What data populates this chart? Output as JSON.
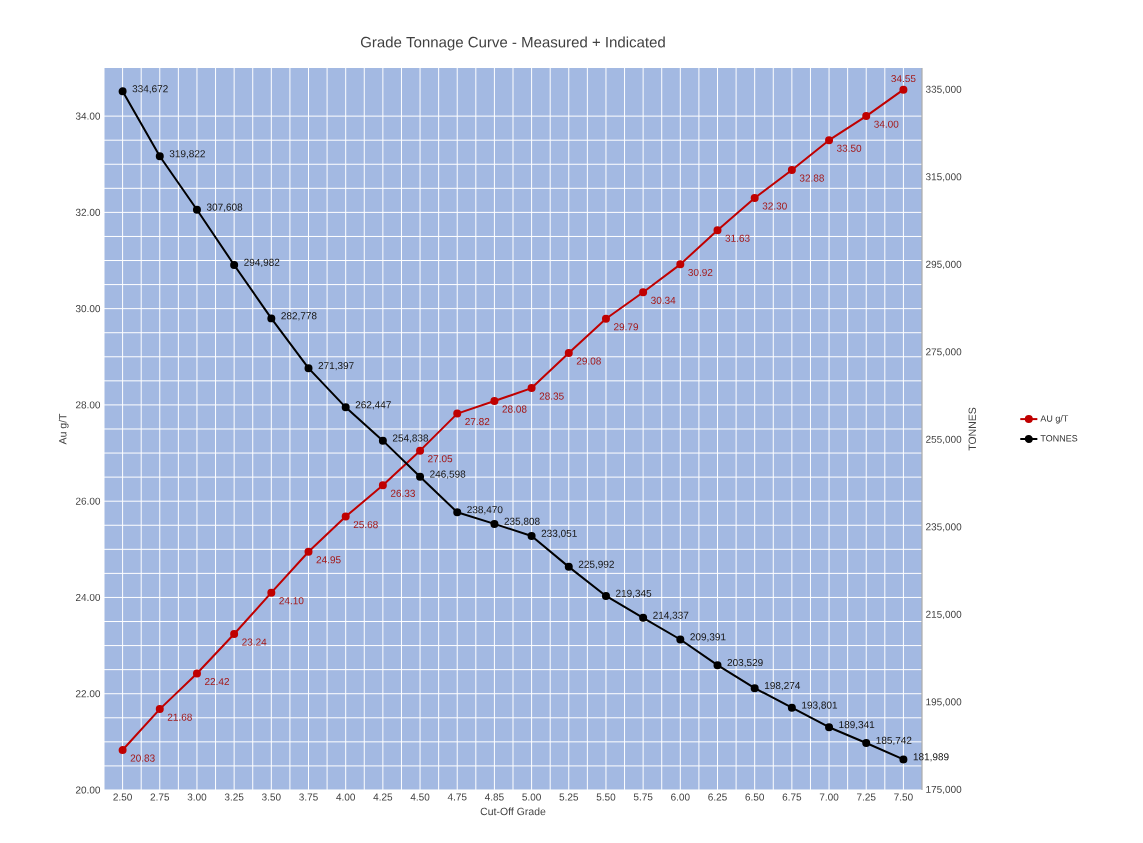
{
  "chart_data": {
    "type": "line",
    "title": "Grade Tonnage Curve - Measured + Indicated",
    "xlabel": "Cut-Off Grade",
    "ylabel": "Au g/T",
    "y2label": "TONNES",
    "categories": [
      "2.50",
      "2.75",
      "3.00",
      "3.25",
      "3.50",
      "3.75",
      "4.00",
      "4.25",
      "4.50",
      "4.75",
      "4.85",
      "5.00",
      "5.25",
      "5.50",
      "5.75",
      "6.00",
      "6.25",
      "6.50",
      "6.75",
      "7.00",
      "7.25",
      "7.50"
    ],
    "series": [
      {
        "name": "AU g/T",
        "color": "#c00000",
        "values": [
          20.83,
          21.68,
          22.42,
          23.24,
          24.1,
          24.95,
          25.68,
          26.33,
          27.05,
          27.82,
          28.08,
          28.35,
          29.08,
          29.79,
          30.34,
          30.92,
          31.63,
          32.3,
          32.88,
          33.5,
          34.0,
          34.55
        ],
        "value_labels": [
          "20.83",
          "21.68",
          "22.42",
          "23.24",
          "24.10",
          "24.95",
          "25.68",
          "26.33",
          "27.05",
          "27.82",
          "28.08",
          "28.35",
          "29.08",
          "29.79",
          "30.34",
          "30.92",
          "31.63",
          "32.30",
          "32.88",
          "33.50",
          "34.00",
          "34.55"
        ]
      },
      {
        "name": "TONNES",
        "color": "#000000",
        "axis": "y2",
        "values": [
          334672,
          319822,
          307608,
          294982,
          282778,
          271397,
          262447,
          254838,
          246598,
          238470,
          235808,
          233051,
          225992,
          219345,
          214337,
          209391,
          203529,
          198274,
          193801,
          189341,
          185742,
          181989
        ],
        "value_labels": [
          "334,672",
          "319,822",
          "307,608",
          "294,982",
          "282,778",
          "271,397",
          "262,447",
          "254,838",
          "246,598",
          "238,470",
          "235,808",
          "233,051",
          "225,992",
          "219,345",
          "214,337",
          "209,391",
          "203,529",
          "198,274",
          "193,801",
          "189,341",
          "185,742",
          "181,989"
        ]
      }
    ],
    "ylim": [
      20,
      35
    ],
    "yticks": [
      {
        "value": 20,
        "label": "20.00"
      },
      {
        "value": 22,
        "label": "22.00"
      },
      {
        "value": 24,
        "label": "24.00"
      },
      {
        "value": 26,
        "label": "26.00"
      },
      {
        "value": 28,
        "label": "28.00"
      },
      {
        "value": 30,
        "label": "30.00"
      },
      {
        "value": 32,
        "label": "32.00"
      },
      {
        "value": 34,
        "label": "34.00"
      }
    ],
    "y2lim": [
      175000,
      340000
    ],
    "y2ticks": [
      {
        "value": 175000,
        "label": "175,000"
      },
      {
        "value": 195000,
        "label": "195,000"
      },
      {
        "value": 215000,
        "label": "215,000"
      },
      {
        "value": 235000,
        "label": "235,000"
      },
      {
        "value": 255000,
        "label": "255,000"
      },
      {
        "value": 275000,
        "label": "275,000"
      },
      {
        "value": 295000,
        "label": "295,000"
      },
      {
        "value": 315000,
        "label": "315,000"
      },
      {
        "value": 335000,
        "label": "335,000"
      }
    ],
    "grid": true,
    "legend": "right",
    "marker": "circle",
    "line_style": "solid"
  }
}
